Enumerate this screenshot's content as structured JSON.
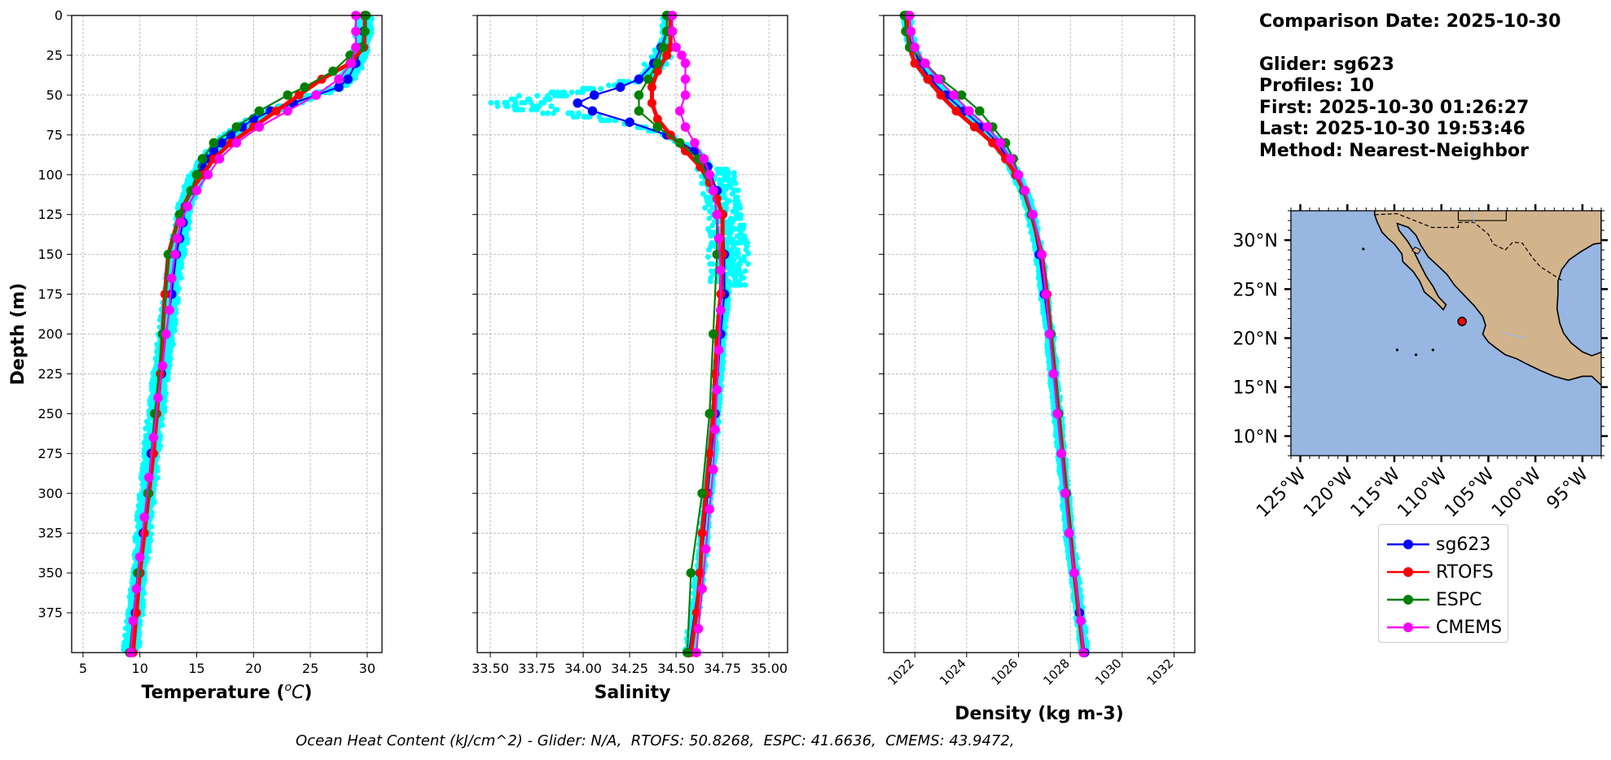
{
  "info": {
    "comparison_date": "Comparison Date: 2025-10-30",
    "glider": "Glider: sg623",
    "profiles": "Profiles: 10",
    "first": "First: 2025-10-30 01:26:27",
    "last": "Last: 2025-10-30 19:53:46",
    "method": "Method: Nearest-Neighbor"
  },
  "footer": "Ocean Heat Content (kJ/cm^2) - Glider: N/A,  RTOFS: 50.8268,  ESPC: 41.6636,  CMEMS: 43.9472,",
  "colors": {
    "sg623": "#0000ff",
    "rtofs": "#ff0000",
    "espc": "#008000",
    "cmems": "#ff00ff",
    "raw": "#00ffff",
    "ocean": "#97b6e1",
    "land": "#d2b48c"
  },
  "legend": [
    {
      "name": "sg623",
      "color": "#0000ff"
    },
    {
      "name": "RTOFS",
      "color": "#ff0000"
    },
    {
      "name": "ESPC",
      "color": "#008000"
    },
    {
      "name": "CMEMS",
      "color": "#ff00ff"
    }
  ],
  "chart_data": [
    {
      "type": "line",
      "xlabel": "Temperature (°C)",
      "ylabel": "Depth (m)",
      "xlim": [
        4,
        31.3
      ],
      "ylim": [
        400,
        0
      ],
      "xticks": [
        5,
        10,
        15,
        20,
        25,
        30
      ],
      "yticks": [
        0,
        25,
        50,
        75,
        100,
        125,
        150,
        175,
        200,
        225,
        250,
        275,
        300,
        325,
        350,
        375
      ],
      "grid": true,
      "series": [
        {
          "name": "sg623",
          "depth": [
            0,
            10,
            20,
            30,
            40,
            45,
            50,
            55,
            60,
            65,
            70,
            75,
            80,
            85,
            90,
            95,
            100,
            110,
            120,
            130,
            140,
            150,
            175,
            200,
            225,
            250,
            275,
            300,
            325,
            350,
            375,
            400
          ],
          "values": [
            29.8,
            29.7,
            29.5,
            29.0,
            28.3,
            27.5,
            25.5,
            23.5,
            21.5,
            20.0,
            19.0,
            18.0,
            17.2,
            16.5,
            16.0,
            15.5,
            15.0,
            14.5,
            14.0,
            13.8,
            13.5,
            13.2,
            12.8,
            12.3,
            11.9,
            11.4,
            11.0,
            10.7,
            10.3,
            10.0,
            9.6,
            9.2
          ]
        },
        {
          "name": "RTOFS",
          "depth": [
            0,
            10,
            20,
            30,
            40,
            50,
            60,
            70,
            80,
            90,
            100,
            110,
            125,
            150,
            175,
            200,
            225,
            250,
            275,
            300,
            325,
            350,
            375,
            400
          ],
          "values": [
            29.8,
            29.8,
            29.7,
            28.5,
            26.0,
            24.0,
            22.0,
            20.0,
            18.0,
            16.5,
            15.5,
            14.5,
            13.5,
            12.5,
            12.2,
            12.0,
            11.8,
            11.5,
            11.2,
            10.8,
            10.4,
            10.0,
            9.7,
            9.4
          ]
        },
        {
          "name": "ESPC",
          "depth": [
            0,
            10,
            20,
            25,
            35,
            45,
            50,
            60,
            70,
            80,
            90,
            100,
            110,
            125,
            150,
            200,
            250,
            300,
            350,
            400
          ],
          "values": [
            29.9,
            29.8,
            29.5,
            28.5,
            27.0,
            24.5,
            23.0,
            20.5,
            18.5,
            16.5,
            15.5,
            15.0,
            14.5,
            13.5,
            12.5,
            12.0,
            11.3,
            10.7,
            9.8,
            9.1
          ]
        },
        {
          "name": "CMEMS",
          "depth": [
            0,
            10,
            20,
            30,
            40,
            50,
            60,
            70,
            80,
            90,
            100,
            110,
            120,
            130,
            140,
            150,
            165,
            185,
            200,
            220,
            240,
            265,
            290,
            315,
            340,
            360,
            380,
            400
          ],
          "values": [
            29.0,
            29.0,
            29.0,
            28.6,
            27.5,
            25.5,
            23.0,
            20.5,
            18.5,
            17.0,
            16.0,
            15.0,
            14.2,
            13.6,
            13.3,
            13.1,
            12.8,
            12.6,
            12.3,
            12.0,
            11.6,
            11.2,
            10.8,
            10.4,
            10.0,
            9.7,
            9.4,
            9.2
          ]
        }
      ]
    },
    {
      "type": "line",
      "xlabel": "Salinity",
      "xlim": [
        33.43,
        35.1
      ],
      "ylim": [
        400,
        0
      ],
      "xticks": [
        33.5,
        33.75,
        34.0,
        34.25,
        34.5,
        34.75,
        35.0
      ],
      "grid": true,
      "series": [
        {
          "name": "sg623",
          "depth": [
            0,
            10,
            20,
            30,
            40,
            45,
            50,
            55,
            60,
            67,
            75,
            85,
            95,
            110,
            125,
            150,
            175,
            200,
            250,
            300,
            350,
            400
          ],
          "values": [
            34.45,
            34.45,
            34.42,
            34.38,
            34.3,
            34.2,
            34.06,
            33.97,
            34.05,
            34.25,
            34.45,
            34.6,
            34.67,
            34.72,
            34.75,
            34.76,
            34.76,
            34.74,
            34.71,
            34.67,
            34.63,
            34.57
          ]
        },
        {
          "name": "RTOFS",
          "depth": [
            0,
            10,
            20,
            25,
            35,
            45,
            55,
            65,
            75,
            85,
            95,
            105,
            115,
            125,
            150,
            175,
            200,
            225,
            250,
            275,
            300,
            325,
            350,
            375,
            400
          ],
          "values": [
            34.47,
            34.47,
            34.47,
            34.45,
            34.4,
            34.37,
            34.37,
            34.4,
            34.47,
            34.55,
            34.63,
            34.68,
            34.72,
            34.75,
            34.75,
            34.74,
            34.72,
            34.71,
            34.7,
            34.68,
            34.66,
            34.64,
            34.63,
            34.61,
            34.58
          ]
        },
        {
          "name": "ESPC",
          "depth": [
            0,
            10,
            20,
            30,
            40,
            50,
            60,
            70,
            80,
            90,
            100,
            110,
            125,
            150,
            200,
            250,
            300,
            350,
            400
          ],
          "values": [
            34.45,
            34.45,
            34.43,
            34.4,
            34.35,
            34.3,
            34.3,
            34.4,
            34.52,
            34.62,
            34.67,
            34.7,
            34.72,
            34.72,
            34.7,
            34.68,
            34.64,
            34.58,
            34.56
          ]
        },
        {
          "name": "CMEMS",
          "depth": [
            0,
            10,
            20,
            25,
            30,
            40,
            50,
            60,
            70,
            80,
            90,
            100,
            110,
            125,
            140,
            160,
            185,
            210,
            235,
            260,
            285,
            310,
            335,
            360,
            385,
            400
          ],
          "values": [
            34.48,
            34.48,
            34.5,
            34.53,
            34.55,
            34.55,
            34.55,
            34.52,
            34.55,
            34.6,
            34.65,
            34.68,
            34.7,
            34.72,
            34.73,
            34.74,
            34.74,
            34.73,
            34.72,
            34.71,
            34.7,
            34.68,
            34.66,
            34.64,
            34.62,
            34.61
          ]
        }
      ]
    },
    {
      "type": "line",
      "xlabel": "Density (kg m-3)",
      "xlim": [
        1020.8,
        1032.8
      ],
      "ylim": [
        400,
        0
      ],
      "xticks": [
        1022,
        1024,
        1026,
        1028,
        1030,
        1032
      ],
      "grid": true,
      "series": [
        {
          "name": "sg623",
          "depth": [
            0,
            10,
            20,
            30,
            40,
            50,
            60,
            70,
            80,
            90,
            100,
            110,
            125,
            150,
            175,
            200,
            225,
            250,
            275,
            300,
            325,
            350,
            375,
            400
          ],
          "values": [
            1021.7,
            1021.75,
            1021.9,
            1022.2,
            1022.6,
            1023.2,
            1023.9,
            1024.6,
            1025.2,
            1025.6,
            1025.9,
            1026.2,
            1026.5,
            1026.8,
            1027.0,
            1027.2,
            1027.35,
            1027.5,
            1027.65,
            1027.8,
            1027.95,
            1028.15,
            1028.35,
            1028.55
          ]
        },
        {
          "name": "RTOFS",
          "depth": [
            0,
            10,
            20,
            30,
            40,
            50,
            60,
            70,
            80,
            90,
            100,
            110,
            125,
            150,
            175,
            200,
            250,
            300,
            350,
            400
          ],
          "values": [
            1021.7,
            1021.7,
            1021.8,
            1022.0,
            1022.5,
            1023.0,
            1023.6,
            1024.3,
            1025.0,
            1025.5,
            1025.9,
            1026.2,
            1026.5,
            1026.9,
            1027.1,
            1027.25,
            1027.55,
            1027.85,
            1028.15,
            1028.5
          ]
        },
        {
          "name": "ESPC",
          "depth": [
            0,
            10,
            20,
            30,
            40,
            50,
            60,
            70,
            80,
            90,
            100,
            110,
            125,
            150,
            200,
            250,
            300,
            350,
            400
          ],
          "values": [
            1021.6,
            1021.65,
            1021.8,
            1022.4,
            1023.0,
            1023.8,
            1024.5,
            1025.0,
            1025.5,
            1025.8,
            1026.0,
            1026.2,
            1026.5,
            1026.9,
            1027.25,
            1027.55,
            1027.85,
            1028.15,
            1028.5
          ]
        },
        {
          "name": "CMEMS",
          "depth": [
            0,
            10,
            20,
            30,
            40,
            50,
            60,
            70,
            80,
            90,
            100,
            110,
            125,
            150,
            175,
            200,
            225,
            250,
            275,
            300,
            325,
            350,
            380,
            400
          ],
          "values": [
            1021.8,
            1021.85,
            1022.0,
            1022.4,
            1022.9,
            1023.5,
            1024.1,
            1024.8,
            1025.3,
            1025.7,
            1026.0,
            1026.25,
            1026.55,
            1026.9,
            1027.05,
            1027.2,
            1027.35,
            1027.5,
            1027.65,
            1027.8,
            1027.95,
            1028.15,
            1028.4,
            1028.5
          ]
        }
      ]
    },
    {
      "type": "map",
      "lat_ticks": [
        "30°N",
        "25°N",
        "20°N",
        "15°N",
        "10°N"
      ],
      "lon_ticks": [
        "125°W",
        "120°W",
        "115°W",
        "110°W",
        "105°W",
        "100°W",
        "95°W"
      ],
      "extent": {
        "lon": [
          -126,
          -93
        ],
        "lat": [
          8,
          33
        ]
      },
      "glider_position": {
        "lon": -107.8,
        "lat": 21.7
      }
    }
  ]
}
